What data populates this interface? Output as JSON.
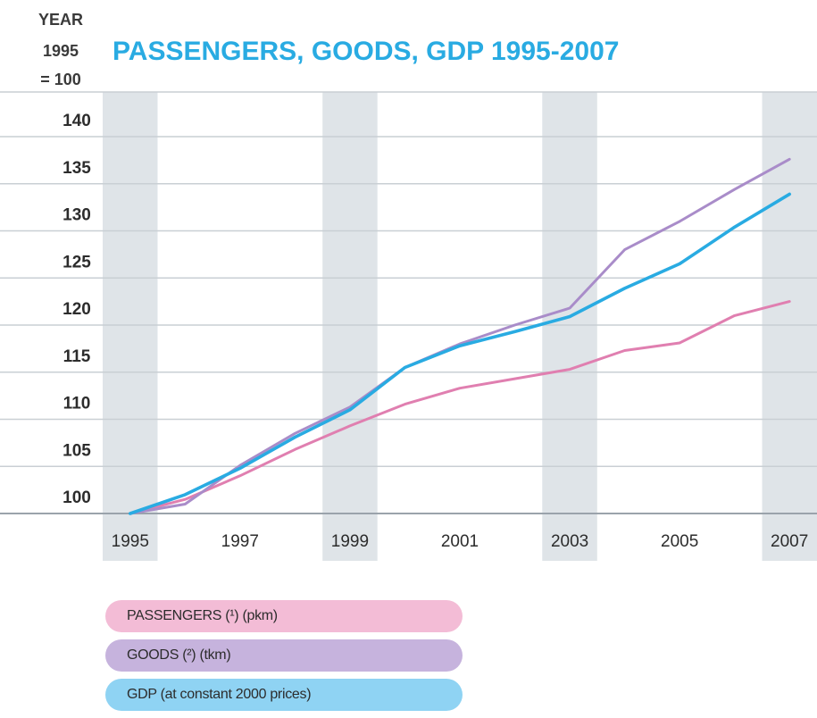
{
  "chart_data": {
    "type": "line",
    "title": "PASSENGERS, GOODS, GDP 1995-2007",
    "ylabel": [
      "YEAR",
      "1995",
      "= 100"
    ],
    "x": [
      1995,
      1996,
      1997,
      1998,
      1999,
      2000,
      2001,
      2002,
      2003,
      2004,
      2005,
      2006,
      2007
    ],
    "xtick_labels": [
      "1995",
      "1997",
      "1999",
      "2001",
      "2003",
      "2005",
      "2007"
    ],
    "ytick_labels": [
      "100",
      "105",
      "110",
      "115",
      "120",
      "125",
      "130",
      "135",
      "140"
    ],
    "xlim": [
      1994.5,
      2007.5
    ],
    "ylim": [
      100,
      144
    ],
    "grid": true,
    "legend_position": "bottom-left",
    "series": [
      {
        "name": "PASSENGERS (¹) (pkm)",
        "color": "#e07fb0",
        "legend_color": "#f3bcd6",
        "values": [
          100,
          101.5,
          104,
          106.8,
          109.3,
          111.6,
          113.3,
          114.3,
          115.3,
          117.3,
          118.1,
          121.0,
          122.5
        ]
      },
      {
        "name": "GOODS (²) (tkm)",
        "color": "#a98cc9",
        "legend_color": "#c6b3dd",
        "values": [
          100,
          101,
          105.1,
          108.5,
          111.3,
          115.5,
          118.0,
          120.0,
          121.8,
          128.0,
          131.0,
          134.4,
          137.6
        ]
      },
      {
        "name": "GDP (at constant 2000 prices)",
        "color": "#29abe2",
        "legend_color": "#8fd3f3",
        "values": [
          100,
          102,
          104.8,
          108.1,
          111.0,
          115.5,
          117.8,
          119.3,
          120.9,
          123.9,
          126.5,
          130.4,
          133.9
        ]
      }
    ]
  }
}
